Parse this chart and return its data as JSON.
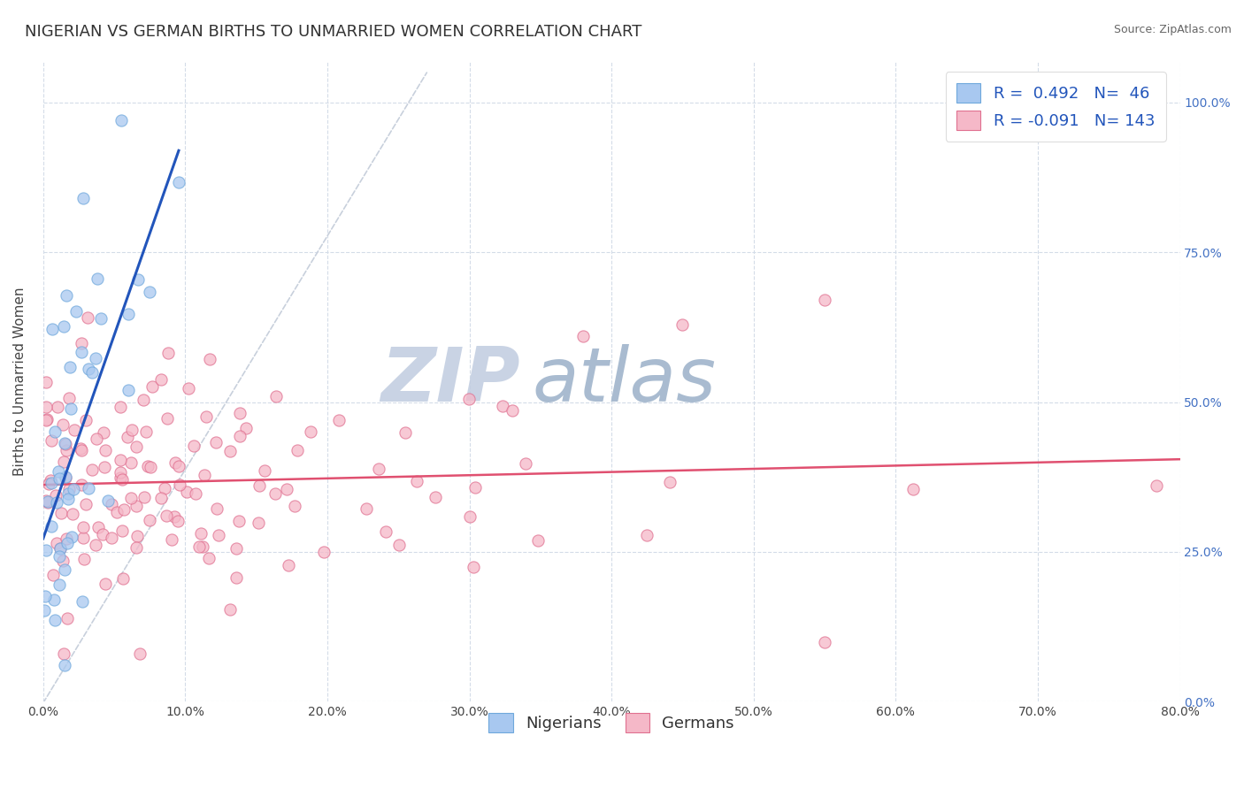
{
  "title": "NIGERIAN VS GERMAN BIRTHS TO UNMARRIED WOMEN CORRELATION CHART",
  "source": "Source: ZipAtlas.com",
  "xlabel_vals": [
    0.0,
    10.0,
    20.0,
    30.0,
    40.0,
    50.0,
    60.0,
    70.0,
    80.0
  ],
  "ylabel_vals": [
    0.0,
    25.0,
    50.0,
    75.0,
    100.0
  ],
  "ylabel_label": "Births to Unmarried Women",
  "xlim": [
    0.0,
    80.0
  ],
  "ylim": [
    0.0,
    107.0
  ],
  "nigerians_R": 0.492,
  "nigerians_N": 46,
  "germans_R": -0.091,
  "germans_N": 143,
  "blue_dot_color": "#a8c8f0",
  "blue_dot_edge": "#6fa8dc",
  "blue_line_color": "#2255bb",
  "pink_dot_color": "#f5b8c8",
  "pink_dot_edge": "#e07090",
  "pink_line_color": "#e05070",
  "ref_line_color": "#c8d0dc",
  "watermark_zip": "ZIP",
  "watermark_atlas": "atlas",
  "watermark_color_zip": "#c0cce0",
  "watermark_color_atlas": "#9ab0c8",
  "background_color": "#ffffff",
  "grid_color": "#d4dce8",
  "legend_label_blue": "Nigerians",
  "legend_label_pink": "Germans",
  "title_fontsize": 13,
  "legend_fontsize": 13,
  "tick_fontsize": 10,
  "ylabel_fontsize": 11,
  "right_tick_color": "#4472c4"
}
